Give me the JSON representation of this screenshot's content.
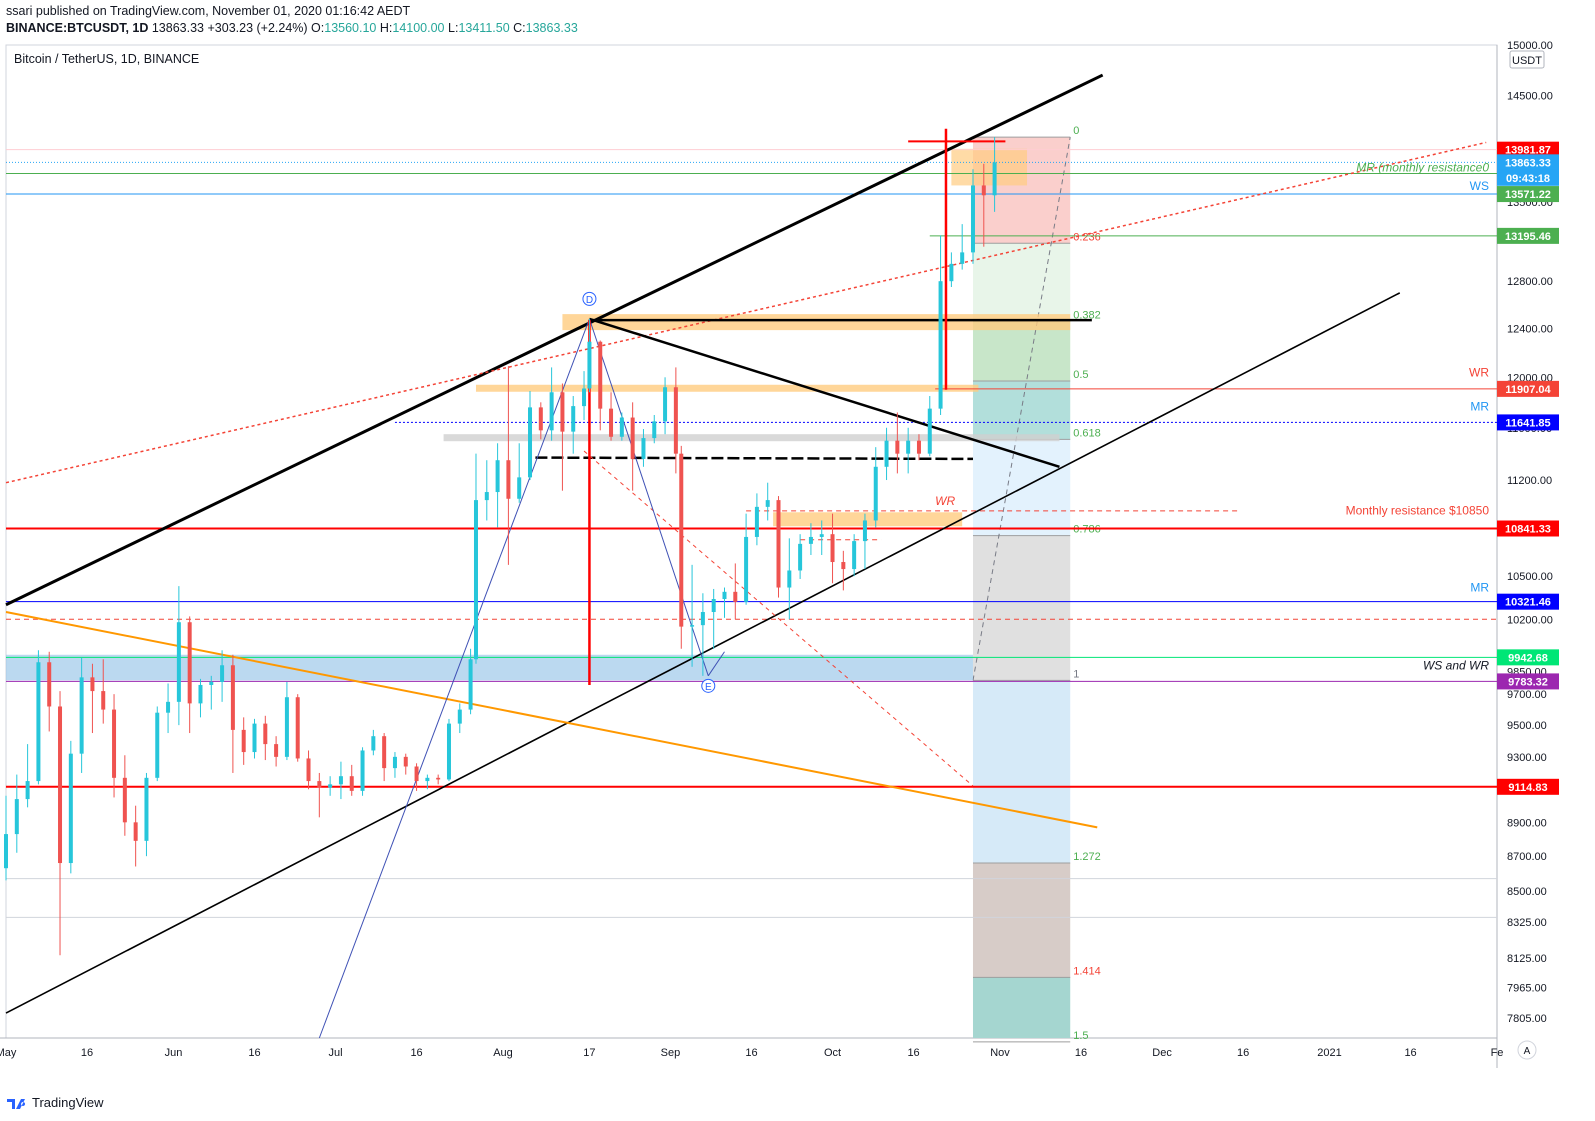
{
  "header": {
    "publish_line": "ssari published on TradingView.com, November 01, 2020 01:16:42 AEDT",
    "symbol": "BINANCE:BTCUSDT, 1D",
    "last": "13863.33",
    "change": "+303.23 (+2.24%)",
    "o_label": "O:",
    "o": "13560.10",
    "h_label": "H:",
    "h": "14100.00",
    "l_label": "L:",
    "l": "13411.50",
    "c_label": "C:",
    "c": "13863.33"
  },
  "footer": {
    "brand": "TradingView"
  },
  "colors": {
    "up": "#26c6da",
    "down": "#ef5350",
    "grid": "#f0f3fa",
    "red": "#ff0000",
    "blue": "#0000ff",
    "green": "#4caf50",
    "black": "#000000",
    "orange": "#ff9800",
    "purple": "#9c27b0"
  },
  "chart_data": {
    "type": "candlestick",
    "title": "Bitcoin / TetherUS, 1D, BINANCE",
    "currency": "USDT",
    "y_scale": "log",
    "ylim": [
      7700,
      15000
    ],
    "x_range": [
      "2020-05-01",
      "2021-02-01"
    ],
    "x_ticks": [
      {
        "date": "2020-05-01",
        "label": "May"
      },
      {
        "date": "2020-05-16",
        "label": "16"
      },
      {
        "date": "2020-06-01",
        "label": "Jun"
      },
      {
        "date": "2020-06-16",
        "label": "16"
      },
      {
        "date": "2020-07-01",
        "label": "Jul"
      },
      {
        "date": "2020-07-16",
        "label": "16"
      },
      {
        "date": "2020-08-01",
        "label": "Aug"
      },
      {
        "date": "2020-08-17",
        "label": "17"
      },
      {
        "date": "2020-09-01",
        "label": "Sep"
      },
      {
        "date": "2020-09-16",
        "label": "16"
      },
      {
        "date": "2020-10-01",
        "label": "Oct"
      },
      {
        "date": "2020-10-16",
        "label": "16"
      },
      {
        "date": "2020-11-01",
        "label": "Nov"
      },
      {
        "date": "2020-11-16",
        "label": "16"
      },
      {
        "date": "2020-12-01",
        "label": "Dec"
      },
      {
        "date": "2020-12-16",
        "label": "16"
      },
      {
        "date": "2021-01-01",
        "label": "2021"
      },
      {
        "date": "2021-01-16",
        "label": "16"
      },
      {
        "date": "2021-02-01",
        "label": "Fe"
      }
    ],
    "y_ticks": [
      "15000.00",
      "14500.00",
      "13500.00",
      "12800.00",
      "12400.00",
      "12000.00",
      "11600.00",
      "11200.00",
      "10850.00",
      "10500.00",
      "10200.00",
      "9850.00",
      "9700.00",
      "9500.00",
      "9300.00",
      "9100.00",
      "8900.00",
      "8700.00",
      "8500.00",
      "8325.00",
      "8125.00",
      "7965.00",
      "7805.00"
    ],
    "price_labels": [
      {
        "text": "13981.87",
        "price": 13981.87,
        "color": "#ff0000"
      },
      {
        "text": "13863.33",
        "price": 13863.33,
        "color": "#26a5f5"
      },
      {
        "text": "09:43:18",
        "price": 13720,
        "color": "#26a5f5"
      },
      {
        "text": "13571.22",
        "price": 13571.22,
        "color": "#4caf50"
      },
      {
        "text": "13195.46",
        "price": 13195.46,
        "color": "#4caf50"
      },
      {
        "text": "11907.04",
        "price": 11907.04,
        "color": "#f44336"
      },
      {
        "text": "11641.85",
        "price": 11641.85,
        "color": "#0000ff"
      },
      {
        "text": "10841.33",
        "price": 10841.33,
        "color": "#ff0000"
      },
      {
        "text": "10321.46",
        "price": 10321.46,
        "color": "#0000ff"
      },
      {
        "text": "9942.68",
        "price": 9942.68,
        "color": "#00e676"
      },
      {
        "text": "9783.32",
        "price": 9783.32,
        "color": "#9c27b0"
      },
      {
        "text": "9114.83",
        "price": 9114.83,
        "color": "#ff0000"
      }
    ],
    "annotations": [
      {
        "text": "MR (monthly resistance0",
        "price": 13760,
        "color": "#4caf50"
      },
      {
        "text": "WS",
        "price": 13590,
        "color": "#2196f3"
      },
      {
        "text": "WR",
        "price": 11990,
        "color": "#f44336"
      },
      {
        "text": "MR",
        "price": 11720,
        "color": "#2196f3"
      },
      {
        "text": "Monthly resistance $10850",
        "price": 10930,
        "color": "#f44336"
      },
      {
        "text": "MR",
        "price": 10380,
        "color": "#2196f3"
      },
      {
        "text": "WS and WR",
        "price": 9850,
        "color": "#131722"
      },
      {
        "text": "WR",
        "date": "2020-10-20",
        "price": 11000,
        "color": "#f44336"
      }
    ],
    "fib_levels": [
      {
        "label": "0",
        "price": 14100
      },
      {
        "label": "0.236",
        "price": 13130
      },
      {
        "label": "0.382",
        "price": 12460
      },
      {
        "label": "0.5",
        "price": 11970
      },
      {
        "label": "0.618",
        "price": 11510
      },
      {
        "label": "0.786",
        "price": 10790
      },
      {
        "label": "1",
        "price": 9790
      },
      {
        "label": "1.272",
        "price": 8660
      },
      {
        "label": "1.414",
        "price": 8020
      },
      {
        "label": "1.5",
        "price": 7680
      }
    ],
    "pattern_points": [
      {
        "label": "D",
        "date": "2020-08-17",
        "price": 12480
      },
      {
        "label": "E",
        "date": "2020-09-08",
        "price": 9820
      }
    ],
    "ohlc": [
      {
        "d": "2020-05-01",
        "o": 8630,
        "h": 9060,
        "l": 8560,
        "c": 8830
      },
      {
        "d": "2020-05-03",
        "o": 8830,
        "h": 9190,
        "l": 8720,
        "c": 9040
      },
      {
        "d": "2020-05-05",
        "o": 9040,
        "h": 9380,
        "l": 8990,
        "c": 9150
      },
      {
        "d": "2020-05-07",
        "o": 9150,
        "h": 9990,
        "l": 9130,
        "c": 9910
      },
      {
        "d": "2020-05-09",
        "o": 9910,
        "h": 9980,
        "l": 9460,
        "c": 9620
      },
      {
        "d": "2020-05-11",
        "o": 9620,
        "h": 9720,
        "l": 8140,
        "c": 8660
      },
      {
        "d": "2020-05-13",
        "o": 8660,
        "h": 9400,
        "l": 8600,
        "c": 9320
      },
      {
        "d": "2020-05-15",
        "o": 9320,
        "h": 9940,
        "l": 9200,
        "c": 9810
      },
      {
        "d": "2020-05-17",
        "o": 9810,
        "h": 9900,
        "l": 9450,
        "c": 9720
      },
      {
        "d": "2020-05-19",
        "o": 9720,
        "h": 9930,
        "l": 9510,
        "c": 9600
      },
      {
        "d": "2020-05-21",
        "o": 9600,
        "h": 9700,
        "l": 9050,
        "c": 9170
      },
      {
        "d": "2020-05-23",
        "o": 9170,
        "h": 9310,
        "l": 8820,
        "c": 8900
      },
      {
        "d": "2020-05-25",
        "o": 8900,
        "h": 9000,
        "l": 8640,
        "c": 8790
      },
      {
        "d": "2020-05-27",
        "o": 8790,
        "h": 9200,
        "l": 8700,
        "c": 9170
      },
      {
        "d": "2020-05-29",
        "o": 9170,
        "h": 9620,
        "l": 9150,
        "c": 9580
      },
      {
        "d": "2020-05-31",
        "o": 9580,
        "h": 9770,
        "l": 9450,
        "c": 9650
      },
      {
        "d": "2020-06-02",
        "o": 9650,
        "h": 10430,
        "l": 9500,
        "c": 10180
      },
      {
        "d": "2020-06-04",
        "o": 10180,
        "h": 10220,
        "l": 9450,
        "c": 9640
      },
      {
        "d": "2020-06-06",
        "o": 9640,
        "h": 9800,
        "l": 9550,
        "c": 9760
      },
      {
        "d": "2020-06-08",
        "o": 9760,
        "h": 9820,
        "l": 9600,
        "c": 9780
      },
      {
        "d": "2020-06-10",
        "o": 9780,
        "h": 9990,
        "l": 9650,
        "c": 9890
      },
      {
        "d": "2020-06-12",
        "o": 9890,
        "h": 9960,
        "l": 9200,
        "c": 9470
      },
      {
        "d": "2020-06-14",
        "o": 9470,
        "h": 9550,
        "l": 9250,
        "c": 9330
      },
      {
        "d": "2020-06-16",
        "o": 9330,
        "h": 9540,
        "l": 9290,
        "c": 9510
      },
      {
        "d": "2020-06-18",
        "o": 9510,
        "h": 9560,
        "l": 9280,
        "c": 9380
      },
      {
        "d": "2020-06-20",
        "o": 9380,
        "h": 9430,
        "l": 9240,
        "c": 9300
      },
      {
        "d": "2020-06-22",
        "o": 9300,
        "h": 9780,
        "l": 9280,
        "c": 9680
      },
      {
        "d": "2020-06-24",
        "o": 9680,
        "h": 9700,
        "l": 9270,
        "c": 9290
      },
      {
        "d": "2020-06-26",
        "o": 9290,
        "h": 9340,
        "l": 9100,
        "c": 9150
      },
      {
        "d": "2020-06-28",
        "o": 9150,
        "h": 9200,
        "l": 8930,
        "c": 9110
      },
      {
        "d": "2020-06-30",
        "o": 9110,
        "h": 9180,
        "l": 9060,
        "c": 9130
      },
      {
        "d": "2020-07-02",
        "o": 9130,
        "h": 9270,
        "l": 9040,
        "c": 9180
      },
      {
        "d": "2020-07-04",
        "o": 9180,
        "h": 9250,
        "l": 9060,
        "c": 9090
      },
      {
        "d": "2020-07-06",
        "o": 9090,
        "h": 9360,
        "l": 9060,
        "c": 9340
      },
      {
        "d": "2020-07-08",
        "o": 9340,
        "h": 9470,
        "l": 9310,
        "c": 9430
      },
      {
        "d": "2020-07-10",
        "o": 9430,
        "h": 9450,
        "l": 9150,
        "c": 9230
      },
      {
        "d": "2020-07-12",
        "o": 9230,
        "h": 9330,
        "l": 9170,
        "c": 9300
      },
      {
        "d": "2020-07-14",
        "o": 9300,
        "h": 9320,
        "l": 9190,
        "c": 9240
      },
      {
        "d": "2020-07-16",
        "o": 9240,
        "h": 9260,
        "l": 9090,
        "c": 9150
      },
      {
        "d": "2020-07-18",
        "o": 9150,
        "h": 9190,
        "l": 9100,
        "c": 9170
      },
      {
        "d": "2020-07-20",
        "o": 9170,
        "h": 9190,
        "l": 9130,
        "c": 9160
      },
      {
        "d": "2020-07-22",
        "o": 9160,
        "h": 9540,
        "l": 9150,
        "c": 9510
      },
      {
        "d": "2020-07-24",
        "o": 9510,
        "h": 9640,
        "l": 9450,
        "c": 9600
      },
      {
        "d": "2020-07-26",
        "o": 9600,
        "h": 10000,
        "l": 9570,
        "c": 9930
      },
      {
        "d": "2020-07-27",
        "o": 9930,
        "h": 11400,
        "l": 9900,
        "c": 11050
      },
      {
        "d": "2020-07-29",
        "o": 11050,
        "h": 11350,
        "l": 10900,
        "c": 11110
      },
      {
        "d": "2020-07-31",
        "o": 11110,
        "h": 11480,
        "l": 10850,
        "c": 11350
      },
      {
        "d": "2020-08-02",
        "o": 11350,
        "h": 12090,
        "l": 10580,
        "c": 11060
      },
      {
        "d": "2020-08-04",
        "o": 11060,
        "h": 11480,
        "l": 11030,
        "c": 11220
      },
      {
        "d": "2020-08-06",
        "o": 11220,
        "h": 11890,
        "l": 11200,
        "c": 11760
      },
      {
        "d": "2020-08-08",
        "o": 11760,
        "h": 11800,
        "l": 11510,
        "c": 11580
      },
      {
        "d": "2020-08-10",
        "o": 11580,
        "h": 12080,
        "l": 11500,
        "c": 11880
      },
      {
        "d": "2020-08-12",
        "o": 11880,
        "h": 11950,
        "l": 11120,
        "c": 11570
      },
      {
        "d": "2020-08-14",
        "o": 11570,
        "h": 11850,
        "l": 11400,
        "c": 11770
      },
      {
        "d": "2020-08-16",
        "o": 11770,
        "h": 12050,
        "l": 11660,
        "c": 11910
      },
      {
        "d": "2020-08-17",
        "o": 11910,
        "h": 12480,
        "l": 11880,
        "c": 12290
      },
      {
        "d": "2020-08-19",
        "o": 12290,
        "h": 12300,
        "l": 11580,
        "c": 11750
      },
      {
        "d": "2020-08-21",
        "o": 11750,
        "h": 11880,
        "l": 11500,
        "c": 11530
      },
      {
        "d": "2020-08-23",
        "o": 11530,
        "h": 11720,
        "l": 11500,
        "c": 11680
      },
      {
        "d": "2020-08-25",
        "o": 11680,
        "h": 11800,
        "l": 11120,
        "c": 11360
      },
      {
        "d": "2020-08-27",
        "o": 11360,
        "h": 11590,
        "l": 11300,
        "c": 11520
      },
      {
        "d": "2020-08-29",
        "o": 11520,
        "h": 11700,
        "l": 11480,
        "c": 11650
      },
      {
        "d": "2020-08-31",
        "o": 11650,
        "h": 12000,
        "l": 11550,
        "c": 11920
      },
      {
        "d": "2020-09-02",
        "o": 11920,
        "h": 12080,
        "l": 11250,
        "c": 11400
      },
      {
        "d": "2020-09-03",
        "o": 11400,
        "h": 11460,
        "l": 10000,
        "c": 10150
      },
      {
        "d": "2020-09-05",
        "o": 10150,
        "h": 10580,
        "l": 9880,
        "c": 10160
      },
      {
        "d": "2020-09-07",
        "o": 10160,
        "h": 10380,
        "l": 9820,
        "c": 10250
      },
      {
        "d": "2020-09-09",
        "o": 10250,
        "h": 10410,
        "l": 10000,
        "c": 10340
      },
      {
        "d": "2020-09-11",
        "o": 10340,
        "h": 10420,
        "l": 10210,
        "c": 10390
      },
      {
        "d": "2020-09-13",
        "o": 10390,
        "h": 10590,
        "l": 10200,
        "c": 10320
      },
      {
        "d": "2020-09-15",
        "o": 10320,
        "h": 10950,
        "l": 10300,
        "c": 10780
      },
      {
        "d": "2020-09-17",
        "o": 10780,
        "h": 11100,
        "l": 10720,
        "c": 11000
      },
      {
        "d": "2020-09-19",
        "o": 11000,
        "h": 11180,
        "l": 10900,
        "c": 11050
      },
      {
        "d": "2020-09-21",
        "o": 11050,
        "h": 11080,
        "l": 10350,
        "c": 10420
      },
      {
        "d": "2020-09-23",
        "o": 10420,
        "h": 10770,
        "l": 10200,
        "c": 10540
      },
      {
        "d": "2020-09-25",
        "o": 10540,
        "h": 10800,
        "l": 10480,
        "c": 10730
      },
      {
        "d": "2020-09-27",
        "o": 10730,
        "h": 10880,
        "l": 10650,
        "c": 10780
      },
      {
        "d": "2020-09-29",
        "o": 10780,
        "h": 10900,
        "l": 10650,
        "c": 10800
      },
      {
        "d": "2020-10-01",
        "o": 10800,
        "h": 10950,
        "l": 10450,
        "c": 10600
      },
      {
        "d": "2020-10-03",
        "o": 10600,
        "h": 10680,
        "l": 10400,
        "c": 10550
      },
      {
        "d": "2020-10-05",
        "o": 10550,
        "h": 10800,
        "l": 10500,
        "c": 10750
      },
      {
        "d": "2020-10-07",
        "o": 10750,
        "h": 10950,
        "l": 10550,
        "c": 10900
      },
      {
        "d": "2020-10-09",
        "o": 10900,
        "h": 11450,
        "l": 10850,
        "c": 11300
      },
      {
        "d": "2020-10-11",
        "o": 11300,
        "h": 11600,
        "l": 11200,
        "c": 11500
      },
      {
        "d": "2020-10-13",
        "o": 11500,
        "h": 11720,
        "l": 11250,
        "c": 11400
      },
      {
        "d": "2020-10-15",
        "o": 11400,
        "h": 11600,
        "l": 11250,
        "c": 11500
      },
      {
        "d": "2020-10-17",
        "o": 11500,
        "h": 11550,
        "l": 11350,
        "c": 11400
      },
      {
        "d": "2020-10-19",
        "o": 11400,
        "h": 11850,
        "l": 11380,
        "c": 11750
      },
      {
        "d": "2020-10-21",
        "o": 11750,
        "h": 13200,
        "l": 11700,
        "c": 12800
      },
      {
        "d": "2020-10-23",
        "o": 12800,
        "h": 13050,
        "l": 12750,
        "c": 12950
      },
      {
        "d": "2020-10-25",
        "o": 12950,
        "h": 13300,
        "l": 12900,
        "c": 13050
      },
      {
        "d": "2020-10-27",
        "o": 13050,
        "h": 13800,
        "l": 12950,
        "c": 13650
      },
      {
        "d": "2020-10-29",
        "o": 13650,
        "h": 13850,
        "l": 13100,
        "c": 13560
      },
      {
        "d": "2020-10-31",
        "o": 13560,
        "h": 14100,
        "l": 13410,
        "c": 13863
      }
    ]
  }
}
